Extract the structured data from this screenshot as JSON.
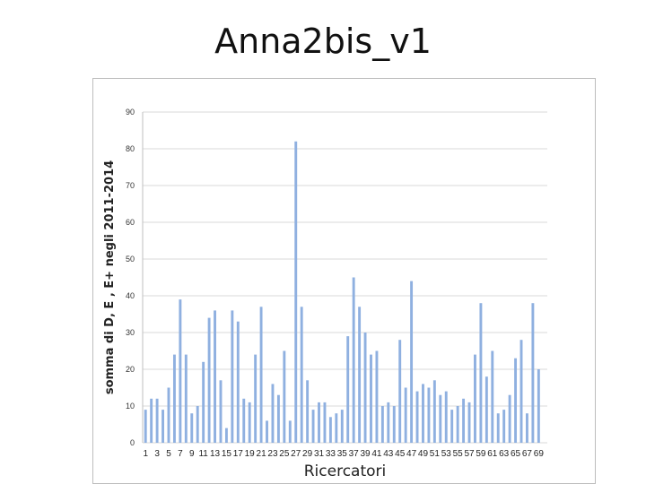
{
  "slide": {
    "title": "Anna2bis_v1"
  },
  "chart_data": {
    "type": "bar",
    "title": "Anna2bis_v1",
    "xlabel": "Ricercatori",
    "ylabel": "somma di D, E , E+ negli 2011-2014",
    "ylim": [
      0,
      90
    ],
    "yticks": [
      0,
      10,
      20,
      30,
      40,
      50,
      60,
      70,
      80,
      90
    ],
    "grid": true,
    "legend": "none",
    "bar_color": "#8fb0e0",
    "categories": [
      "1",
      "2",
      "3",
      "4",
      "5",
      "6",
      "7",
      "8",
      "9",
      "10",
      "11",
      "12",
      "13",
      "14",
      "15",
      "16",
      "17",
      "18",
      "19",
      "20",
      "21",
      "22",
      "23",
      "24",
      "25",
      "26",
      "27",
      "28",
      "29",
      "30",
      "31",
      "32",
      "33",
      "34",
      "35",
      "36",
      "37",
      "38",
      "39",
      "40",
      "41",
      "42",
      "43",
      "44",
      "45",
      "46",
      "47",
      "48",
      "49",
      "50",
      "51",
      "52",
      "53",
      "54",
      "55",
      "56",
      "57",
      "58",
      "59",
      "60",
      "61",
      "62",
      "63",
      "64",
      "65",
      "66",
      "67",
      "68",
      "69",
      "70"
    ],
    "x_tick_labels": [
      "1",
      "3",
      "5",
      "7",
      "9",
      "11",
      "13",
      "15",
      "17",
      "19",
      "21",
      "23",
      "25",
      "27",
      "29",
      "31",
      "33",
      "35",
      "37",
      "39",
      "41",
      "43",
      "45",
      "47",
      "49",
      "51",
      "53",
      "55",
      "57",
      "59",
      "61",
      "63",
      "65",
      "67",
      "69"
    ],
    "values": [
      9,
      12,
      12,
      9,
      15,
      24,
      39,
      24,
      8,
      10,
      22,
      34,
      36,
      17,
      4,
      36,
      33,
      12,
      11,
      24,
      37,
      6,
      16,
      13,
      25,
      6,
      82,
      37,
      17,
      9,
      11,
      11,
      7,
      8,
      9,
      29,
      45,
      37,
      30,
      24,
      25,
      10,
      11,
      10,
      28,
      15,
      44,
      14,
      16,
      15,
      17,
      13,
      14,
      9,
      10,
      12,
      11,
      24,
      38,
      18,
      25,
      8,
      9,
      13,
      23,
      28,
      8,
      38,
      20,
      0
    ]
  }
}
